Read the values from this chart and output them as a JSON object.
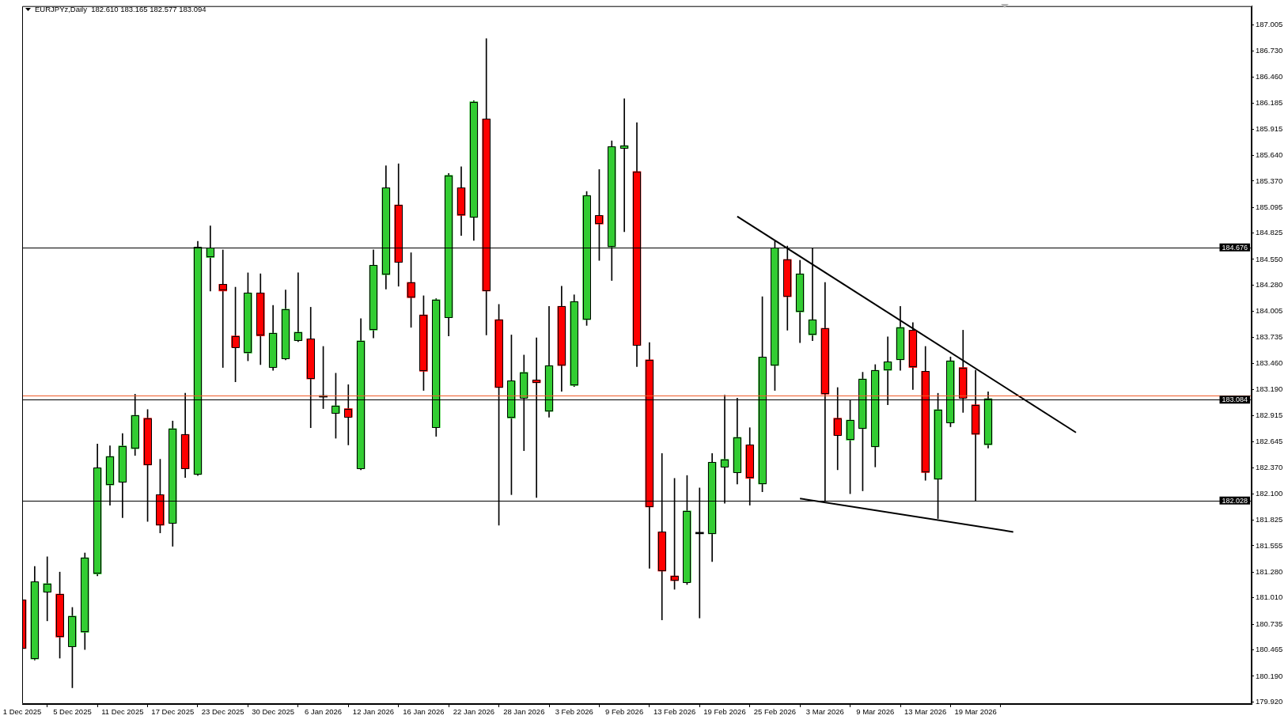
{
  "chart_data": {
    "type": "candlestick",
    "title": "EURJPYz,Daily  182.610 183.165 182.577 183.094",
    "categories": [
      "1 Dec 2025",
      null,
      null,
      null,
      "5 Dec 2025",
      null,
      null,
      null,
      "11 Dec 2025",
      null,
      null,
      null,
      "17 Dec 2025",
      null,
      null,
      null,
      "23 Dec 2025",
      null,
      null,
      null,
      "30 Dec 2025",
      null,
      null,
      null,
      "6 Jan 2026",
      null,
      null,
      null,
      "12 Jan 2026",
      null,
      null,
      null,
      "16 Jan 2026",
      null,
      null,
      null,
      "22 Jan 2026",
      null,
      null,
      null,
      "28 Jan 2026",
      null,
      null,
      null,
      "3 Feb 2026",
      null,
      null,
      null,
      "9 Feb 2026",
      null,
      null,
      null,
      "13 Feb 2026",
      null,
      null,
      null,
      "19 Feb 2026",
      null,
      null,
      null,
      "25 Feb 2026",
      null,
      null,
      null,
      "3 Mar 2026",
      null,
      null,
      null,
      "9 Mar 2026",
      null,
      null,
      null,
      "13 Mar 2026",
      null,
      null,
      null,
      "19 Mar 2026",
      null,
      null,
      null,
      null,
      null,
      null,
      null,
      null,
      null,
      null,
      null,
      null,
      null,
      null,
      null,
      null,
      null,
      null,
      null,
      null,
      null,
      null
    ],
    "ohlc": [
      [
        180.99,
        181.16,
        180.12,
        180.48
      ],
      [
        180.37,
        181.34,
        180.36,
        181.18
      ],
      [
        181.07,
        181.44,
        180.77,
        181.16
      ],
      [
        181.05,
        181.28,
        180.38,
        180.6
      ],
      [
        180.5,
        180.91,
        180.07,
        180.82
      ],
      [
        180.65,
        181.48,
        180.47,
        181.43
      ],
      [
        181.26,
        182.62,
        181.24,
        182.37
      ],
      [
        182.19,
        182.6,
        181.98,
        182.49
      ],
      [
        182.22,
        182.73,
        181.85,
        182.6
      ],
      [
        182.57,
        183.14,
        182.5,
        182.92
      ],
      [
        182.89,
        182.98,
        181.81,
        182.4
      ],
      [
        182.09,
        182.46,
        181.69,
        181.77
      ],
      [
        181.79,
        182.86,
        181.55,
        182.78
      ],
      [
        182.72,
        183.15,
        182.27,
        182.36
      ],
      [
        182.3,
        184.74,
        182.29,
        184.68
      ],
      [
        184.57,
        184.9,
        184.22,
        184.67
      ],
      [
        184.29,
        184.65,
        183.42,
        184.22
      ],
      [
        183.75,
        184.26,
        183.27,
        183.63
      ],
      [
        183.57,
        184.41,
        183.49,
        184.2
      ],
      [
        184.2,
        184.4,
        183.45,
        183.75
      ],
      [
        183.42,
        184.07,
        183.39,
        183.78
      ],
      [
        183.51,
        184.23,
        183.5,
        184.03
      ],
      [
        183.7,
        184.41,
        183.69,
        183.79
      ],
      [
        183.72,
        184.05,
        182.79,
        183.3
      ],
      [
        183.11,
        183.64,
        182.99,
        183.11
      ],
      [
        182.94,
        183.36,
        182.68,
        183.02
      ],
      [
        182.99,
        183.24,
        182.61,
        182.9
      ],
      [
        182.36,
        183.93,
        182.35,
        183.7
      ],
      [
        183.81,
        184.65,
        183.73,
        184.49
      ],
      [
        184.39,
        185.53,
        184.24,
        185.3
      ],
      [
        185.12,
        185.55,
        184.27,
        184.52
      ],
      [
        184.31,
        184.62,
        183.84,
        184.15
      ],
      [
        183.97,
        184.17,
        183.18,
        183.38
      ],
      [
        182.79,
        184.14,
        182.7,
        184.13
      ],
      [
        183.94,
        185.45,
        183.75,
        185.43
      ],
      [
        185.3,
        185.52,
        184.8,
        185.01
      ],
      [
        184.99,
        186.21,
        184.75,
        186.2
      ],
      [
        186.02,
        186.86,
        183.76,
        184.22
      ],
      [
        183.92,
        184.08,
        181.77,
        183.21
      ],
      [
        182.89,
        183.76,
        182.09,
        183.28
      ],
      [
        183.1,
        183.55,
        182.55,
        183.37
      ],
      [
        183.29,
        183.73,
        182.06,
        183.26
      ],
      [
        182.96,
        184.06,
        182.9,
        183.44
      ],
      [
        184.06,
        184.27,
        183.17,
        183.44
      ],
      [
        183.23,
        184.18,
        183.22,
        184.11
      ],
      [
        183.92,
        185.26,
        183.86,
        185.22
      ],
      [
        185.01,
        185.49,
        184.54,
        184.92
      ],
      [
        184.68,
        185.79,
        184.33,
        185.73
      ],
      [
        185.71,
        186.23,
        184.84,
        185.74
      ],
      [
        185.47,
        185.98,
        183.43,
        183.65
      ],
      [
        183.5,
        183.68,
        181.32,
        181.96
      ],
      [
        181.7,
        182.52,
        180.78,
        181.29
      ],
      [
        181.24,
        182.26,
        181.1,
        181.19
      ],
      [
        181.17,
        182.29,
        181.15,
        181.92
      ],
      [
        181.68,
        182.16,
        180.8,
        181.68
      ],
      [
        181.68,
        182.52,
        181.39,
        182.43
      ],
      [
        182.38,
        183.13,
        182.0,
        182.46
      ],
      [
        182.32,
        183.1,
        182.2,
        182.69
      ],
      [
        182.61,
        182.79,
        181.98,
        182.26
      ],
      [
        182.2,
        184.16,
        182.12,
        183.53
      ],
      [
        183.44,
        184.74,
        183.18,
        184.67
      ],
      [
        184.55,
        184.69,
        183.81,
        184.16
      ],
      [
        184.0,
        184.54,
        183.68,
        184.4
      ],
      [
        183.76,
        184.67,
        183.7,
        183.92
      ],
      [
        183.83,
        184.31,
        182.03,
        183.14
      ],
      [
        182.89,
        183.21,
        182.35,
        182.71
      ],
      [
        182.66,
        183.08,
        182.1,
        182.87
      ],
      [
        182.78,
        183.37,
        182.13,
        183.3
      ],
      [
        182.59,
        183.45,
        182.38,
        183.39
      ],
      [
        183.39,
        183.74,
        183.03,
        183.48
      ],
      [
        183.5,
        184.06,
        183.39,
        183.84
      ],
      [
        183.81,
        183.89,
        183.19,
        183.42
      ],
      [
        183.38,
        183.64,
        182.24,
        182.32
      ],
      [
        182.25,
        183.15,
        181.84,
        182.98
      ],
      [
        182.84,
        183.53,
        182.8,
        183.49
      ],
      [
        183.42,
        183.81,
        182.95,
        183.1
      ],
      [
        183.03,
        183.39,
        182.03,
        182.72
      ],
      [
        182.61,
        183.165,
        182.577,
        183.094
      ],
      null,
      null,
      null,
      null,
      null,
      null,
      null,
      null,
      null,
      null,
      null,
      null,
      null,
      null,
      null,
      null,
      null,
      null,
      null,
      null,
      null
    ],
    "colors": [
      "#ff0000",
      "#32cd32",
      "#32cd32",
      "#ff0000",
      "#32cd32",
      "#32cd32",
      "#32cd32",
      "#32cd32",
      "#32cd32",
      "#32cd32",
      "#ff0000",
      "#ff0000",
      "#32cd32",
      "#ff0000",
      "#32cd32",
      "#32cd32",
      "#ff0000",
      "#ff0000",
      "#32cd32",
      "#ff0000",
      "#32cd32",
      "#32cd32",
      "#32cd32",
      "#ff0000",
      "#000000",
      "#32cd32",
      "#ff0000",
      "#32cd32",
      "#32cd32",
      "#32cd32",
      "#ff0000",
      "#ff0000",
      "#ff0000",
      "#32cd32",
      "#32cd32",
      "#ff0000",
      "#32cd32",
      "#ff0000",
      "#ff0000",
      "#32cd32",
      "#32cd32",
      "#ff0000",
      "#32cd32",
      "#ff0000",
      "#32cd32",
      "#32cd32",
      "#ff0000",
      "#32cd32",
      "#32cd32",
      "#ff0000",
      "#ff0000",
      "#ff0000",
      "#ff0000",
      "#32cd32",
      "#000000",
      "#32cd32",
      "#32cd32",
      "#32cd32",
      "#ff0000",
      "#32cd32",
      "#32cd32",
      "#ff0000",
      "#32cd32",
      "#32cd32",
      "#ff0000",
      "#ff0000",
      "#32cd32",
      "#32cd32",
      "#32cd32",
      "#32cd32",
      "#32cd32",
      "#ff0000",
      "#ff0000",
      "#32cd32",
      "#32cd32",
      "#ff0000",
      "#ff0000",
      "#32cd32",
      null,
      null,
      null,
      null,
      null,
      null,
      null,
      null,
      null,
      null,
      null,
      null,
      null,
      null,
      null,
      null,
      null,
      null,
      null,
      null,
      null
    ],
    "series": [
      {
        "type": "line",
        "color": "#000000",
        "values": [
          null,
          null,
          null,
          null,
          null,
          null,
          null,
          null,
          null,
          null,
          null,
          null,
          null,
          null,
          null,
          null,
          null,
          null,
          null,
          null,
          null,
          null,
          null,
          null,
          null,
          null,
          null,
          null,
          null,
          null,
          null,
          null,
          null,
          null,
          null,
          null,
          null,
          null,
          null,
          null,
          null,
          null,
          null,
          null,
          null,
          null,
          null,
          null,
          null,
          null,
          null,
          null,
          null,
          null,
          null,
          null,
          null,
          185.0,
          null,
          null,
          null,
          null,
          null,
          null,
          null,
          null,
          null,
          null,
          null,
          null,
          null,
          null,
          null,
          null,
          null,
          null,
          null,
          null,
          null,
          null,
          null,
          null,
          null,
          null,
          182.74,
          null,
          null,
          null,
          null,
          null,
          null,
          null,
          null,
          null,
          null,
          null,
          null,
          null,
          null
        ]
      },
      {
        "type": "line",
        "color": "#000000",
        "values": [
          null,
          null,
          null,
          null,
          null,
          null,
          null,
          null,
          null,
          null,
          null,
          null,
          null,
          null,
          null,
          null,
          null,
          null,
          null,
          null,
          null,
          null,
          null,
          null,
          null,
          null,
          null,
          null,
          null,
          null,
          null,
          null,
          null,
          null,
          null,
          null,
          null,
          null,
          null,
          null,
          null,
          null,
          null,
          null,
          null,
          null,
          null,
          null,
          null,
          null,
          null,
          null,
          null,
          null,
          null,
          null,
          null,
          null,
          null,
          null,
          null,
          null,
          182.05,
          null,
          null,
          null,
          null,
          null,
          null,
          null,
          null,
          null,
          null,
          null,
          null,
          null,
          null,
          null,
          null,
          181.7,
          null,
          null,
          null,
          null,
          null,
          null,
          null,
          null,
          null,
          null,
          null,
          null,
          null,
          null,
          null,
          null,
          null,
          null,
          null
        ]
      }
    ],
    "ylim": [
      179.9,
      187.2
    ],
    "yticks": [
      187.005,
      {
        "value": 186.73,
        "label": "186.730"
      },
      {
        "value": 186.46,
        "label": "186.460"
      },
      186.185,
      185.915,
      {
        "value": 185.64,
        "label": "185.640"
      },
      {
        "value": 185.37,
        "label": "185.370"
      },
      185.095,
      184.825,
      {
        "value": 184.55,
        "label": "184.550"
      },
      {
        "value": 184.28,
        "label": "184.280"
      },
      184.005,
      183.735,
      {
        "value": 183.46,
        "label": "183.460"
      },
      {
        "value": 183.19,
        "label": "183.190"
      },
      182.915,
      182.645,
      {
        "value": 182.37,
        "label": "182.370"
      },
      {
        "value": 182.1,
        "label": "182.100"
      },
      181.825,
      181.555,
      {
        "value": 181.28,
        "label": "181.280"
      },
      {
        "value": 181.01,
        "label": "181.010"
      },
      180.735,
      180.465,
      {
        "value": 180.19,
        "label": "180.190"
      },
      {
        "value": 179.92,
        "label": "179.920"
      }
    ],
    "ref_lines": [
      {
        "axis": "y",
        "value": 184.676,
        "label": "184.676",
        "color": "#000000"
      },
      {
        "axis": "y",
        "value": 183.13,
        "color": "#f05a28"
      },
      {
        "axis": "y",
        "value": 183.084,
        "label": "183.084",
        "color": "#000000"
      },
      {
        "axis": "y",
        "value": 182.028,
        "label": "182.028",
        "color": "#000000"
      }
    ]
  }
}
